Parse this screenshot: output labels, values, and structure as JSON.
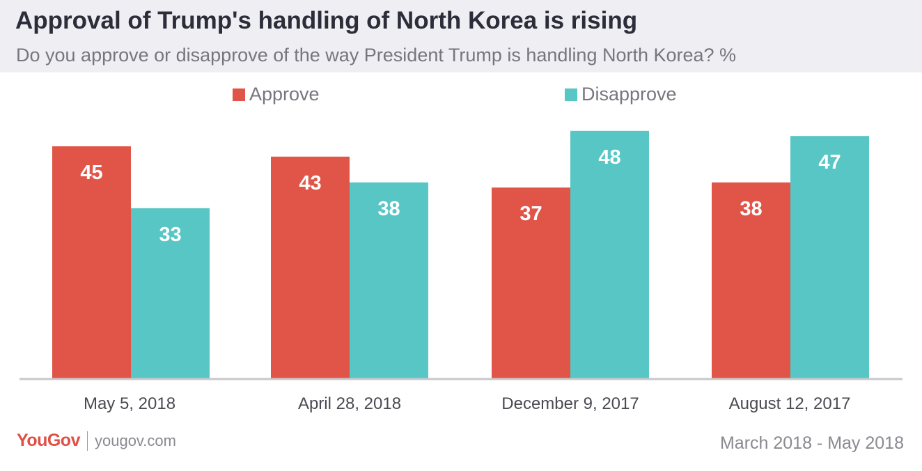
{
  "title": "Approval of Trump's handling of North Korea is rising",
  "subtitle": "Do you approve or disapprove of the way President Trump is handling North Korea? %",
  "legend": [
    {
      "label": "Approve",
      "color": "#e05548"
    },
    {
      "label": "Disapprove",
      "color": "#57c6c4"
    }
  ],
  "footer": {
    "logo": "YouGov",
    "site": "yougov.com",
    "date_range": "March 2018 - May 2018"
  },
  "chart_data": {
    "type": "bar",
    "title": "Approval of Trump's handling of North Korea is rising",
    "xlabel": "",
    "ylabel": "%",
    "ylim": [
      0,
      55
    ],
    "categories": [
      "May 5, 2018",
      "April 28, 2018",
      "December 9, 2017",
      "August 12, 2017"
    ],
    "series": [
      {
        "name": "Approve",
        "color": "#e05548",
        "values": [
          45,
          43,
          37,
          38
        ]
      },
      {
        "name": "Disapprove",
        "color": "#57c6c4",
        "values": [
          33,
          38,
          48,
          47
        ]
      }
    ],
    "data_labels": true,
    "grid": false,
    "legend_position": "top-center"
  }
}
